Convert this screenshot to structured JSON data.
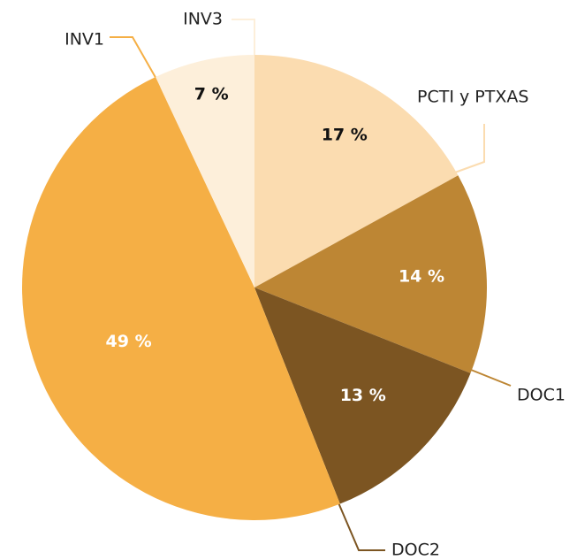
{
  "chart_data": {
    "type": "pie",
    "categories": [
      "PCTI y PTXAS",
      "DOC1",
      "DOC2",
      "INV1",
      "INV3"
    ],
    "values": [
      17,
      14,
      13,
      49,
      7
    ],
    "value_labels": [
      "17 %",
      "14 %",
      "13 %",
      "49 %",
      "7 %"
    ],
    "colors": [
      "#fbdcb0",
      "#bd8634",
      "#7c5522",
      "#f5af45",
      "#fdefda"
    ],
    "label_colors": [
      "#111111",
      "#ffffff",
      "#ffffff",
      "#ffffff",
      "#111111"
    ]
  }
}
